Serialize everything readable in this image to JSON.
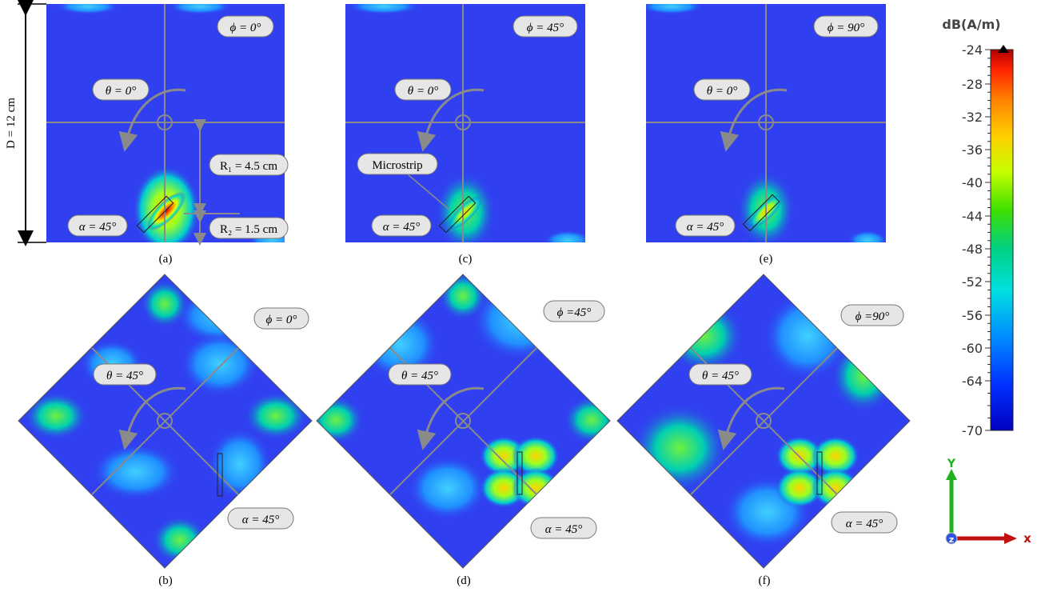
{
  "panels": [
    {
      "id": "a",
      "caption": "(a)",
      "phi": "ϕ = 0°",
      "theta": "θ = 0°",
      "alpha": "α = 45°"
    },
    {
      "id": "c",
      "caption": "(c)",
      "phi": "ϕ = 45°",
      "theta": "θ = 0°",
      "alpha": "α = 45°"
    },
    {
      "id": "e",
      "caption": "(e)",
      "phi": "ϕ = 90°",
      "theta": "θ = 0°",
      "alpha": "α = 45°"
    },
    {
      "id": "b",
      "caption": "(b)",
      "phi": "ϕ = 0°",
      "theta": "θ = 45°",
      "alpha": "α = 45°"
    },
    {
      "id": "d",
      "caption": "(d)",
      "phi": "ϕ =45°",
      "theta": "θ = 45°",
      "alpha": "α = 45°"
    },
    {
      "id": "f",
      "caption": "(f)",
      "phi": "ϕ =90°",
      "theta": "θ = 45°",
      "alpha": "α = 45°"
    }
  ],
  "dimensions": {
    "diameter": "D = 12 cm",
    "r1": "R₁ = 4.5 cm",
    "r2": "R₂ = 1.5 cm",
    "microstrip": "Microstrip"
  },
  "colorbar": {
    "title": "dB(A/m)",
    "ticks": [
      "-24",
      "-28",
      "-32",
      "-36",
      "-40",
      "-44",
      "-48",
      "-52",
      "-56",
      "-60",
      "-64",
      "-70"
    ],
    "colors": [
      "#b00000",
      "#ff2000",
      "#ff8000",
      "#ffd000",
      "#c8ff00",
      "#40e000",
      "#00d080",
      "#00e0e0",
      "#0090ff",
      "#0030ff",
      "#0000c0"
    ]
  },
  "axes": {
    "y": "Y",
    "x": "x",
    "z": "z"
  },
  "colors": {
    "background": "#3040f0",
    "line": "#8a8a8a",
    "label_fill": "#e6e6e6"
  }
}
